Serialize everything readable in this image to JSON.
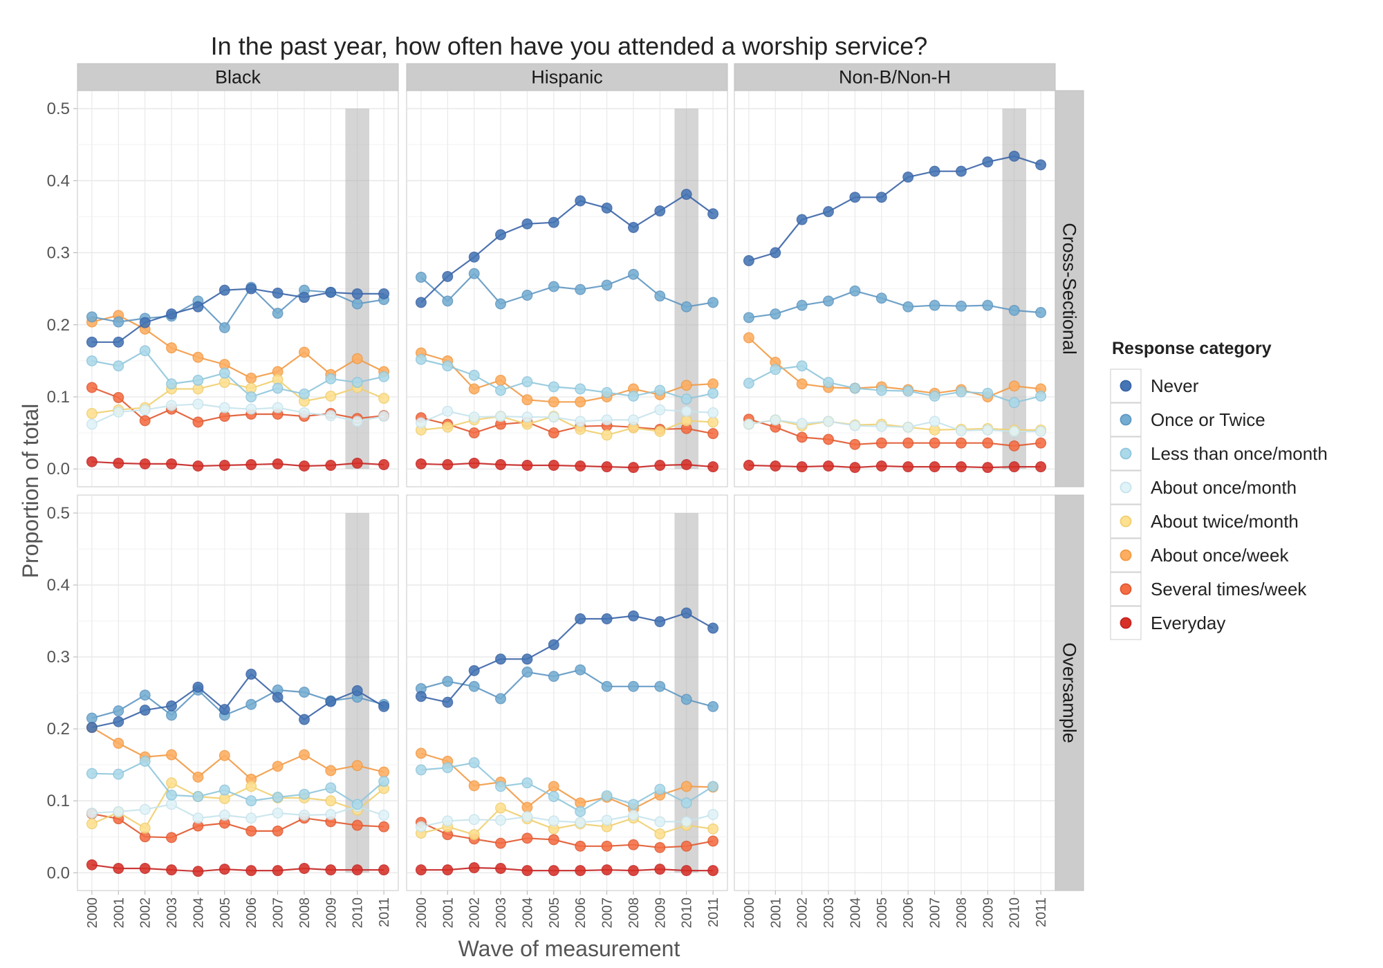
{
  "chart_data": {
    "type": "line",
    "title": "In the past year, how often have you attended a worship service?",
    "xlabel": "Wave of measurement",
    "ylabel": "Proportion of total",
    "x": [
      "2000",
      "2001",
      "2002",
      "2003",
      "2004",
      "2005",
      "2006",
      "2007",
      "2008",
      "2009",
      "2010",
      "2011"
    ],
    "y_ticks": [
      "0.0",
      "0.1",
      "0.2",
      "0.3",
      "0.4",
      "0.5"
    ],
    "ylim": [
      0,
      0.5
    ],
    "grid": true,
    "highlight_band": "2010",
    "legend": {
      "title": "Response category",
      "placement": "right",
      "items": [
        {
          "label": "Never",
          "color": "#4575b4"
        },
        {
          "label": "Once or Twice",
          "color": "#74add1"
        },
        {
          "label": "Less than once/month",
          "color": "#abd9e9"
        },
        {
          "label": "About once/month",
          "color": "#e0f3f8"
        },
        {
          "label": "About twice/month",
          "color": "#fee090"
        },
        {
          "label": "About once/week",
          "color": "#fdae61"
        },
        {
          "label": "Several times/week",
          "color": "#f46d43"
        },
        {
          "label": "Everyday",
          "color": "#d73027"
        }
      ]
    },
    "columns": [
      "Black",
      "Hispanic",
      "Non-B/Non-H"
    ],
    "rows": [
      "Cross-Sectional",
      "Oversample"
    ],
    "panels": [
      {
        "column": "Black",
        "row": "Cross-Sectional",
        "series": [
          {
            "name": "Never",
            "values": [
              0.176,
              0.176,
              0.203,
              0.215,
              0.225,
              0.248,
              0.25,
              0.244,
              0.238,
              0.245,
              0.243,
              0.243
            ]
          },
          {
            "name": "Once or Twice",
            "values": [
              0.211,
              0.204,
              0.209,
              0.212,
              0.233,
              0.196,
              0.252,
              0.216,
              0.248,
              0.245,
              0.229,
              0.235
            ]
          },
          {
            "name": "Less than once/month",
            "values": [
              0.15,
              0.143,
              0.164,
              0.118,
              0.123,
              0.133,
              0.1,
              0.112,
              0.104,
              0.125,
              0.12,
              0.128
            ]
          },
          {
            "name": "About once/month",
            "values": [
              0.062,
              0.079,
              0.082,
              0.088,
              0.09,
              0.085,
              0.083,
              0.085,
              0.078,
              0.074,
              0.066,
              0.073
            ]
          },
          {
            "name": "About twice/month",
            "values": [
              0.077,
              0.082,
              0.085,
              0.111,
              0.111,
              0.12,
              0.112,
              0.124,
              0.094,
              0.101,
              0.113,
              0.098
            ]
          },
          {
            "name": "About once/week",
            "values": [
              0.204,
              0.213,
              0.194,
              0.168,
              0.155,
              0.145,
              0.126,
              0.135,
              0.162,
              0.131,
              0.153,
              0.135
            ]
          },
          {
            "name": "Several times/week",
            "values": [
              0.113,
              0.099,
              0.067,
              0.083,
              0.065,
              0.073,
              0.076,
              0.076,
              0.073,
              0.077,
              0.07,
              0.074
            ]
          },
          {
            "name": "Everyday",
            "values": [
              0.01,
              0.008,
              0.007,
              0.007,
              0.004,
              0.005,
              0.006,
              0.007,
              0.004,
              0.005,
              0.008,
              0.006
            ]
          }
        ]
      },
      {
        "column": "Hispanic",
        "row": "Cross-Sectional",
        "series": [
          {
            "name": "Never",
            "values": [
              0.231,
              0.267,
              0.294,
              0.325,
              0.34,
              0.342,
              0.372,
              0.362,
              0.335,
              0.358,
              0.381,
              0.354
            ]
          },
          {
            "name": "Once or Twice",
            "values": [
              0.266,
              0.233,
              0.271,
              0.229,
              0.241,
              0.253,
              0.249,
              0.255,
              0.27,
              0.24,
              0.225,
              0.231
            ]
          },
          {
            "name": "Less than once/month",
            "values": [
              0.152,
              0.143,
              0.13,
              0.109,
              0.121,
              0.114,
              0.111,
              0.106,
              0.101,
              0.109,
              0.097,
              0.105
            ]
          },
          {
            "name": "About once/month",
            "values": [
              0.064,
              0.08,
              0.072,
              0.073,
              0.072,
              0.072,
              0.066,
              0.068,
              0.068,
              0.082,
              0.08,
              0.078
            ]
          },
          {
            "name": "About twice/month",
            "values": [
              0.054,
              0.058,
              0.068,
              0.073,
              0.062,
              0.073,
              0.055,
              0.047,
              0.057,
              0.052,
              0.067,
              0.065
            ]
          },
          {
            "name": "About once/week",
            "values": [
              0.161,
              0.15,
              0.111,
              0.123,
              0.096,
              0.093,
              0.093,
              0.1,
              0.111,
              0.103,
              0.116,
              0.118
            ]
          },
          {
            "name": "Several times/week",
            "values": [
              0.071,
              0.062,
              0.05,
              0.062,
              0.065,
              0.05,
              0.059,
              0.06,
              0.058,
              0.055,
              0.056,
              0.049
            ]
          },
          {
            "name": "Everyday",
            "values": [
              0.007,
              0.006,
              0.008,
              0.006,
              0.005,
              0.005,
              0.004,
              0.003,
              0.002,
              0.005,
              0.006,
              0.003
            ]
          }
        ]
      },
      {
        "column": "Non-B/Non-H",
        "row": "Cross-Sectional",
        "series": [
          {
            "name": "Never",
            "values": [
              0.289,
              0.3,
              0.346,
              0.357,
              0.377,
              0.377,
              0.405,
              0.413,
              0.413,
              0.426,
              0.434,
              0.422
            ]
          },
          {
            "name": "Once or Twice",
            "values": [
              0.21,
              0.215,
              0.227,
              0.233,
              0.247,
              0.237,
              0.225,
              0.227,
              0.226,
              0.227,
              0.22,
              0.217
            ]
          },
          {
            "name": "Less than once/month",
            "values": [
              0.119,
              0.138,
              0.143,
              0.12,
              0.112,
              0.109,
              0.108,
              0.101,
              0.107,
              0.105,
              0.092,
              0.101
            ]
          },
          {
            "name": "About once/month",
            "values": [
              0.062,
              0.068,
              0.063,
              0.066,
              0.06,
              0.059,
              0.058,
              0.066,
              0.053,
              0.054,
              0.052,
              0.052
            ]
          },
          {
            "name": "About twice/month",
            "values": [
              0.062,
              0.068,
              0.06,
              0.066,
              0.061,
              0.062,
              0.058,
              0.054,
              0.055,
              0.056,
              0.054,
              0.054
            ]
          },
          {
            "name": "About once/week",
            "values": [
              0.182,
              0.148,
              0.118,
              0.113,
              0.112,
              0.114,
              0.11,
              0.105,
              0.11,
              0.1,
              0.115,
              0.111
            ]
          },
          {
            "name": "Several times/week",
            "values": [
              0.069,
              0.058,
              0.044,
              0.041,
              0.034,
              0.036,
              0.036,
              0.036,
              0.036,
              0.036,
              0.032,
              0.036
            ]
          },
          {
            "name": "Everyday",
            "values": [
              0.005,
              0.004,
              0.003,
              0.004,
              0.002,
              0.004,
              0.003,
              0.003,
              0.003,
              0.002,
              0.003,
              0.003
            ]
          }
        ]
      },
      {
        "column": "Black",
        "row": "Oversample",
        "series": [
          {
            "name": "Never",
            "values": [
              0.202,
              0.21,
              0.226,
              0.232,
              0.258,
              0.227,
              0.276,
              0.244,
              0.213,
              0.238,
              0.253,
              0.231
            ]
          },
          {
            "name": "Once or Twice",
            "values": [
              0.215,
              0.225,
              0.247,
              0.219,
              0.254,
              0.219,
              0.234,
              0.254,
              0.251,
              0.239,
              0.244,
              0.234
            ]
          },
          {
            "name": "Less than once/month",
            "values": [
              0.138,
              0.137,
              0.155,
              0.108,
              0.106,
              0.115,
              0.1,
              0.105,
              0.109,
              0.118,
              0.095,
              0.127
            ]
          },
          {
            "name": "About once/month",
            "values": [
              0.083,
              0.085,
              0.088,
              0.095,
              0.076,
              0.08,
              0.076,
              0.083,
              0.08,
              0.081,
              0.092,
              0.08
            ]
          },
          {
            "name": "About twice/month",
            "values": [
              0.068,
              0.084,
              0.062,
              0.125,
              0.106,
              0.103,
              0.12,
              0.104,
              0.104,
              0.1,
              0.087,
              0.117
            ]
          },
          {
            "name": "About once/week",
            "values": [
              0.202,
              0.18,
              0.161,
              0.164,
              0.133,
              0.163,
              0.13,
              0.148,
              0.164,
              0.142,
              0.149,
              0.14
            ]
          },
          {
            "name": "Several times/week",
            "values": [
              0.082,
              0.075,
              0.05,
              0.049,
              0.065,
              0.069,
              0.058,
              0.058,
              0.076,
              0.071,
              0.066,
              0.064
            ]
          },
          {
            "name": "Everyday",
            "values": [
              0.011,
              0.006,
              0.006,
              0.004,
              0.002,
              0.005,
              0.003,
              0.003,
              0.006,
              0.004,
              0.004,
              0.004
            ]
          }
        ]
      },
      {
        "column": "Hispanic",
        "row": "Oversample",
        "series": [
          {
            "name": "Never",
            "values": [
              0.245,
              0.237,
              0.281,
              0.297,
              0.297,
              0.317,
              0.353,
              0.353,
              0.357,
              0.349,
              0.361,
              0.34
            ]
          },
          {
            "name": "Once or Twice",
            "values": [
              0.256,
              0.266,
              0.259,
              0.242,
              0.279,
              0.273,
              0.282,
              0.259,
              0.259,
              0.259,
              0.241,
              0.231
            ]
          },
          {
            "name": "Less than once/month",
            "values": [
              0.143,
              0.146,
              0.153,
              0.12,
              0.125,
              0.106,
              0.085,
              0.107,
              0.095,
              0.116,
              0.097,
              0.12
            ]
          },
          {
            "name": "About once/month",
            "values": [
              0.064,
              0.072,
              0.074,
              0.073,
              0.078,
              0.072,
              0.07,
              0.073,
              0.08,
              0.071,
              0.071,
              0.081
            ]
          },
          {
            "name": "About twice/month",
            "values": [
              0.055,
              0.064,
              0.053,
              0.09,
              0.075,
              0.061,
              0.068,
              0.064,
              0.076,
              0.054,
              0.066,
              0.061
            ]
          },
          {
            "name": "About once/week",
            "values": [
              0.166,
              0.155,
              0.121,
              0.126,
              0.091,
              0.12,
              0.097,
              0.105,
              0.089,
              0.108,
              0.12,
              0.119
            ]
          },
          {
            "name": "Several times/week",
            "values": [
              0.07,
              0.053,
              0.047,
              0.041,
              0.048,
              0.046,
              0.037,
              0.037,
              0.039,
              0.035,
              0.037,
              0.044
            ]
          },
          {
            "name": "Everyday",
            "values": [
              0.004,
              0.004,
              0.007,
              0.006,
              0.003,
              0.003,
              0.003,
              0.004,
              0.003,
              0.005,
              0.003,
              0.003
            ]
          }
        ]
      }
    ]
  }
}
